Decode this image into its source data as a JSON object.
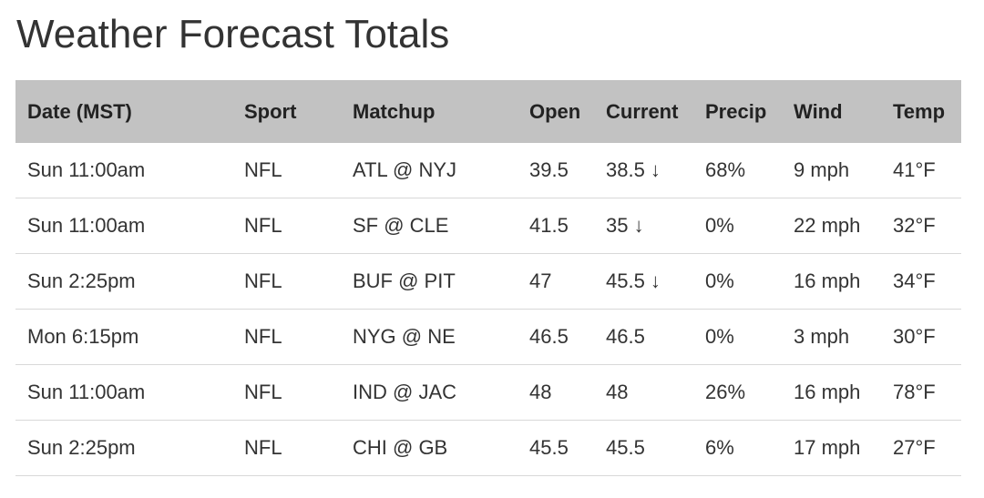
{
  "title": "Weather Forecast Totals",
  "table": {
    "header": [
      "Date (MST)",
      "Sport",
      "Matchup",
      "Open",
      "Current",
      "Precip",
      "Wind",
      "Temp"
    ],
    "rows": [
      [
        "Sun 11:00am",
        "NFL",
        "ATL @ NYJ",
        "39.5",
        "38.5 ↓",
        "68%",
        "9 mph",
        "41°F"
      ],
      [
        "Sun 11:00am",
        "NFL",
        "SF @ CLE",
        "41.5",
        "35 ↓",
        "0%",
        "22 mph",
        "32°F"
      ],
      [
        "Sun 2:25pm",
        "NFL",
        "BUF @ PIT",
        "47",
        "45.5 ↓",
        "0%",
        "16 mph",
        "34°F"
      ],
      [
        "Mon 6:15pm",
        "NFL",
        "NYG @ NE",
        "46.5",
        "46.5",
        "0%",
        "3 mph",
        "30°F"
      ],
      [
        "Sun 11:00am",
        "NFL",
        "IND @ JAC",
        "48",
        "48",
        "26%",
        "16 mph",
        "78°F"
      ],
      [
        "Sun 2:25pm",
        "NFL",
        "CHI @ GB",
        "45.5",
        "45.5",
        "6%",
        "17 mph",
        "27°F"
      ]
    ]
  }
}
